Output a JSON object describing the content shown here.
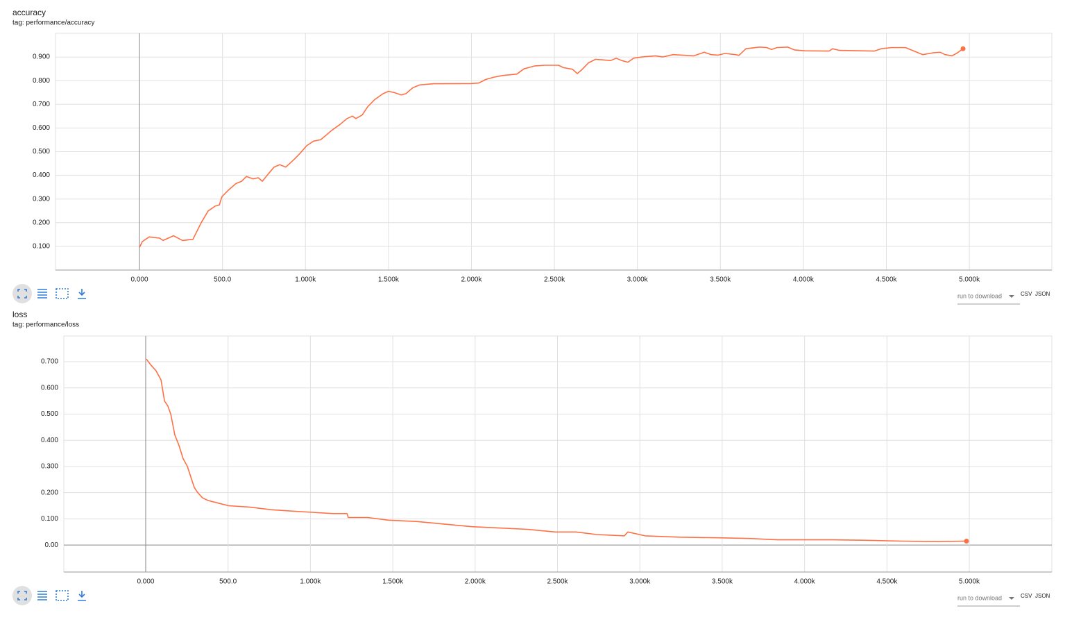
{
  "chart_data": [
    {
      "type": "line",
      "title": "accuracy",
      "subtitle": "tag: performance/accuracy",
      "color": "#ff7043",
      "grid": true,
      "x": [
        0,
        17,
        58,
        121,
        142,
        205,
        259,
        322,
        372,
        414,
        456,
        481,
        497,
        539,
        581,
        615,
        644,
        686,
        715,
        740,
        769,
        811,
        845,
        882,
        936,
        970,
        1007,
        1049,
        1091,
        1125,
        1158,
        1208,
        1250,
        1283,
        1304,
        1342,
        1375,
        1417,
        1467,
        1500,
        1534,
        1576,
        1605,
        1647,
        1689,
        1773,
        2003,
        2045,
        2086,
        2136,
        2191,
        2274,
        2316,
        2379,
        2441,
        2525,
        2554,
        2609,
        2638,
        2663,
        2705,
        2747,
        2788,
        2839,
        2872,
        2905,
        2943,
        2977,
        3027,
        3110,
        3152,
        3215,
        3340,
        3403,
        3445,
        3486,
        3528,
        3591,
        3612,
        3654,
        3737,
        3779,
        3808,
        3842,
        3905,
        3946,
        4009,
        4155,
        4176,
        4218,
        4427,
        4469,
        4532,
        4615,
        4657,
        4720,
        4783,
        4825,
        4854,
        4896,
        4929,
        4962
      ],
      "values": [
        0.095,
        0.12,
        0.14,
        0.135,
        0.125,
        0.145,
        0.125,
        0.13,
        0.2,
        0.25,
        0.27,
        0.275,
        0.31,
        0.34,
        0.365,
        0.375,
        0.395,
        0.385,
        0.39,
        0.375,
        0.4,
        0.435,
        0.445,
        0.435,
        0.47,
        0.495,
        0.525,
        0.545,
        0.55,
        0.57,
        0.59,
        0.615,
        0.64,
        0.65,
        0.64,
        0.655,
        0.69,
        0.72,
        0.745,
        0.755,
        0.75,
        0.74,
        0.745,
        0.77,
        0.782,
        0.787,
        0.788,
        0.79,
        0.805,
        0.815,
        0.822,
        0.828,
        0.85,
        0.862,
        0.865,
        0.865,
        0.855,
        0.848,
        0.83,
        0.845,
        0.875,
        0.89,
        0.888,
        0.885,
        0.895,
        0.885,
        0.878,
        0.895,
        0.9,
        0.905,
        0.9,
        0.91,
        0.905,
        0.92,
        0.91,
        0.908,
        0.915,
        0.91,
        0.907,
        0.935,
        0.942,
        0.94,
        0.932,
        0.94,
        0.942,
        0.93,
        0.926,
        0.925,
        0.935,
        0.928,
        0.925,
        0.935,
        0.94,
        0.94,
        0.928,
        0.91,
        0.918,
        0.92,
        0.91,
        0.905,
        0.918,
        0.935
      ],
      "xlim": [
        -506,
        5497
      ],
      "ylim": [
        0,
        1.0
      ],
      "xticks": [
        {
          "value": 0,
          "label": "0.000"
        },
        {
          "value": 500,
          "label": "500.0"
        },
        {
          "value": 1000,
          "label": "1.000k"
        },
        {
          "value": 1500,
          "label": "1.500k"
        },
        {
          "value": 2000,
          "label": "2.000k"
        },
        {
          "value": 2500,
          "label": "2.500k"
        },
        {
          "value": 3000,
          "label": "3.000k"
        },
        {
          "value": 3500,
          "label": "3.500k"
        },
        {
          "value": 4000,
          "label": "4.000k"
        },
        {
          "value": 4500,
          "label": "4.500k"
        },
        {
          "value": 5000,
          "label": "5.000k"
        }
      ],
      "yticks": [
        {
          "value": 0.1,
          "label": "0.100"
        },
        {
          "value": 0.2,
          "label": "0.200"
        },
        {
          "value": 0.3,
          "label": "0.300"
        },
        {
          "value": 0.4,
          "label": "0.400"
        },
        {
          "value": 0.5,
          "label": "0.500"
        },
        {
          "value": 0.6,
          "label": "0.600"
        },
        {
          "value": 0.7,
          "label": "0.700"
        },
        {
          "value": 0.8,
          "label": "0.800"
        },
        {
          "value": 0.9,
          "label": "0.900"
        }
      ],
      "run_selector": "run to download",
      "downloads": [
        "CSV",
        "JSON"
      ]
    },
    {
      "type": "line",
      "title": "loss",
      "subtitle": "tag: performance/loss",
      "color": "#ff7043",
      "grid": true,
      "x": [
        4,
        34,
        63,
        93,
        114,
        135,
        152,
        177,
        202,
        227,
        253,
        274,
        295,
        316,
        345,
        379,
        442,
        503,
        629,
        758,
        876,
        1011,
        1137,
        1222,
        1230,
        1348,
        1474,
        1643,
        1811,
        1980,
        2148,
        2317,
        2485,
        2612,
        2738,
        2906,
        2927,
        3033,
        3243,
        3454,
        3665,
        3833,
        4002,
        4170,
        4381,
        4591,
        4802,
        4983
      ],
      "values": [
        0.71,
        0.685,
        0.665,
        0.63,
        0.55,
        0.53,
        0.5,
        0.42,
        0.38,
        0.33,
        0.3,
        0.26,
        0.22,
        0.2,
        0.18,
        0.17,
        0.16,
        0.15,
        0.145,
        0.135,
        0.13,
        0.125,
        0.12,
        0.12,
        0.105,
        0.105,
        0.095,
        0.09,
        0.08,
        0.07,
        0.065,
        0.06,
        0.05,
        0.05,
        0.04,
        0.035,
        0.05,
        0.035,
        0.03,
        0.028,
        0.025,
        0.02,
        0.02,
        0.02,
        0.018,
        0.015,
        0.013,
        0.015
      ],
      "xlim": [
        -497,
        5501
      ],
      "ylim": [
        -0.103,
        0.798
      ],
      "xticks": [
        {
          "value": 0,
          "label": "0.000"
        },
        {
          "value": 500,
          "label": "500.0"
        },
        {
          "value": 1000,
          "label": "1.000k"
        },
        {
          "value": 1500,
          "label": "1.500k"
        },
        {
          "value": 2000,
          "label": "2.000k"
        },
        {
          "value": 2500,
          "label": "2.500k"
        },
        {
          "value": 3000,
          "label": "3.000k"
        },
        {
          "value": 3500,
          "label": "3.500k"
        },
        {
          "value": 4000,
          "label": "4.000k"
        },
        {
          "value": 4500,
          "label": "4.500k"
        },
        {
          "value": 5000,
          "label": "5.000k"
        }
      ],
      "yticks": [
        {
          "value": 0,
          "label": "0.00"
        },
        {
          "value": 0.1,
          "label": "0.100"
        },
        {
          "value": 0.2,
          "label": "0.200"
        },
        {
          "value": 0.3,
          "label": "0.300"
        },
        {
          "value": 0.4,
          "label": "0.400"
        },
        {
          "value": 0.5,
          "label": "0.500"
        },
        {
          "value": 0.6,
          "label": "0.600"
        },
        {
          "value": 0.7,
          "label": "0.700"
        }
      ],
      "run_selector": "run to download",
      "downloads": [
        "CSV",
        "JSON"
      ]
    }
  ]
}
